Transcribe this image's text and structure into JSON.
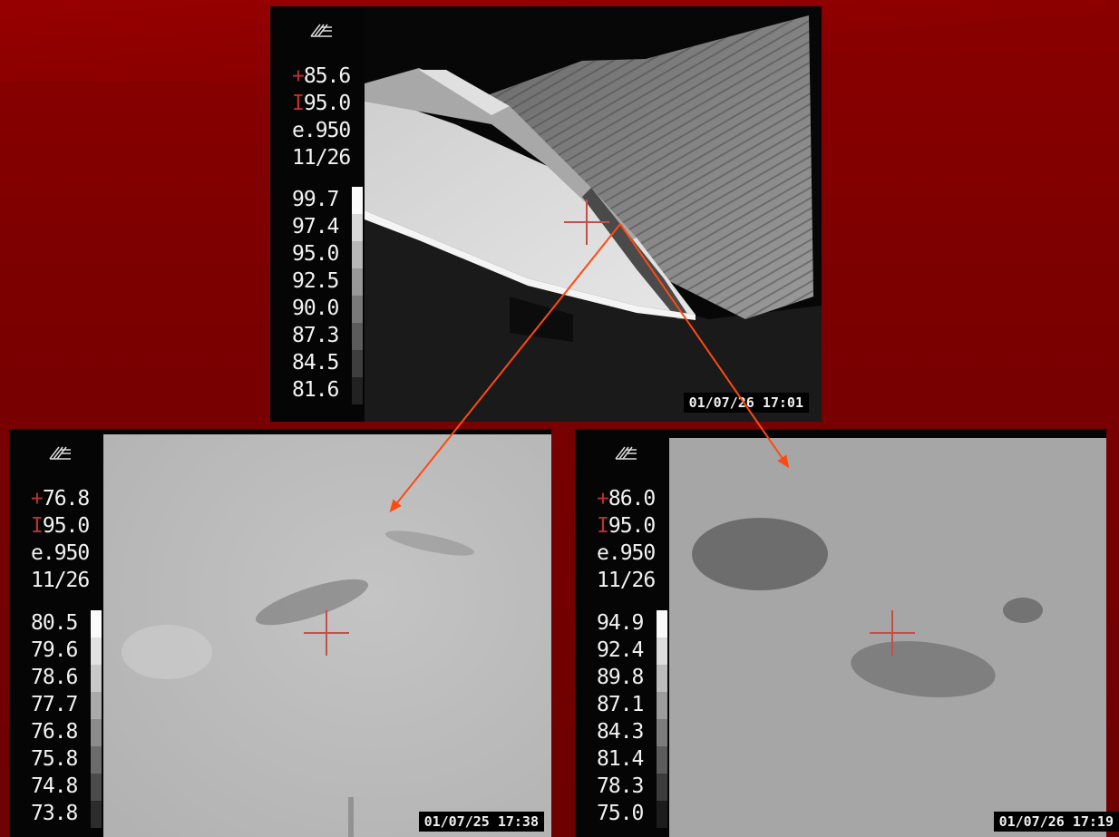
{
  "panels": {
    "top": {
      "spot": "+85.6",
      "level": "I95.0",
      "emissivity": "e.950",
      "date_code": "11/26",
      "scale": [
        "99.7",
        "97.4",
        "95.0",
        "92.5",
        "90.0",
        "87.3",
        "84.5",
        "81.6"
      ],
      "timestamp": "01/07/26 17:01"
    },
    "bottom_left": {
      "spot": "+76.8",
      "level": "I95.0",
      "emissivity": "e.950",
      "date_code": "11/26",
      "scale": [
        "80.5",
        "79.6",
        "78.6",
        "77.7",
        "76.8",
        "75.8",
        "74.8",
        "73.8"
      ],
      "timestamp": "01/07/25 17:38"
    },
    "bottom_right": {
      "spot": "+86.0",
      "level": "I95.0",
      "emissivity": "e.950",
      "date_code": "11/26",
      "scale": [
        "94.9",
        "92.4",
        "89.8",
        "87.1",
        "84.3",
        "81.4",
        "78.3",
        "75.0"
      ],
      "timestamp": "01/07/26 17:19"
    }
  },
  "colors": {
    "background": "#7a0000",
    "arrow": "#ff4a10",
    "crosshair": "#c0514a"
  },
  "icons": {
    "camera_logo": "logo-icon",
    "crosshair": "crosshair-icon"
  }
}
